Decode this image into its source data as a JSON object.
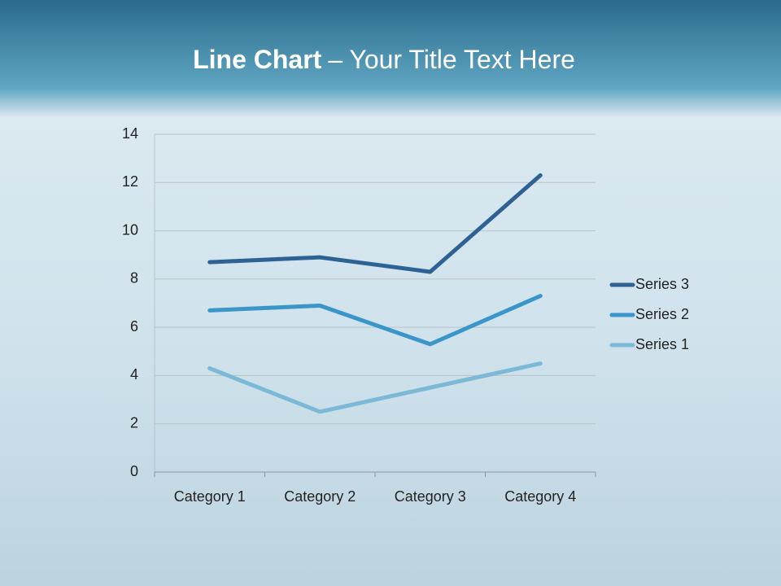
{
  "chart_data": {
    "type": "line",
    "stacked": true,
    "title_parts": [
      "Line Chart",
      "– Your Title Text Here"
    ],
    "categories": [
      "Category 1",
      "Category 2",
      "Category 3",
      "Category 4"
    ],
    "series": [
      {
        "name": "Series 1",
        "color": "#7cb9d6",
        "values": [
          4.3,
          2.5,
          3.5,
          4.5
        ]
      },
      {
        "name": "Series 2",
        "color": "#3a95c9",
        "values": [
          2.4,
          4.4,
          1.8,
          2.8
        ]
      },
      {
        "name": "Series 3",
        "color": "#2f6294",
        "values": [
          2,
          2,
          3,
          5
        ]
      }
    ],
    "ylim": [
      0,
      14
    ],
    "yticks": [
      0,
      2,
      4,
      6,
      8,
      10,
      12,
      14
    ],
    "grid": true,
    "legend": "right"
  }
}
